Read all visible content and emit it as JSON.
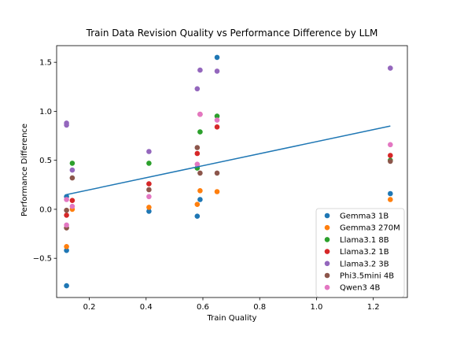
{
  "chart_data": {
    "type": "scatter",
    "title": "Train Data Revision Quality vs Performance Difference by LLM",
    "xlabel": "Train Quality",
    "ylabel": "Performance Difference",
    "xlim": [
      0.085,
      1.32
    ],
    "ylim": [
      -0.9,
      1.67
    ],
    "xticks": [
      0.2,
      0.4,
      0.6,
      0.8,
      1.0,
      1.2
    ],
    "xtick_labels": [
      "0.2",
      "0.4",
      "0.6",
      "0.8",
      "1.0",
      "1.2"
    ],
    "yticks": [
      -0.5,
      0.0,
      0.5,
      1.0,
      1.5
    ],
    "ytick_labels": [
      "−0.5",
      "0.0",
      "0.5",
      "1.0",
      "1.5"
    ],
    "grid": false,
    "legend_position": "lower-right",
    "series": [
      {
        "name": "Gemma3 1B",
        "color": "#1f77b4",
        "points": [
          [
            0.12,
            -0.42
          ],
          [
            0.12,
            -0.78
          ],
          [
            0.12,
            0.13
          ],
          [
            0.41,
            -0.02
          ],
          [
            0.58,
            -0.07
          ],
          [
            0.59,
            0.1
          ],
          [
            0.65,
            1.55
          ],
          [
            1.26,
            0.16
          ]
        ]
      },
      {
        "name": "Gemma3 270M",
        "color": "#ff7f0e",
        "points": [
          [
            0.12,
            -0.38
          ],
          [
            0.14,
            0.0
          ],
          [
            0.41,
            0.02
          ],
          [
            0.58,
            0.05
          ],
          [
            0.59,
            0.19
          ],
          [
            0.65,
            0.18
          ],
          [
            1.26,
            0.1
          ]
        ]
      },
      {
        "name": "Llama3.1 8B",
        "color": "#2ca02c",
        "points": [
          [
            0.14,
            0.47
          ],
          [
            0.41,
            0.47
          ],
          [
            0.58,
            0.42
          ],
          [
            0.59,
            0.79
          ],
          [
            0.65,
            0.95
          ],
          [
            1.26,
            0.5
          ]
        ]
      },
      {
        "name": "Llama3.2 1B",
        "color": "#d62728",
        "points": [
          [
            0.12,
            -0.06
          ],
          [
            0.14,
            0.09
          ],
          [
            0.41,
            0.26
          ],
          [
            0.58,
            0.57
          ],
          [
            0.59,
            0.97
          ],
          [
            0.65,
            0.84
          ],
          [
            1.26,
            0.55
          ]
        ]
      },
      {
        "name": "Llama3.2 3B",
        "color": "#9467bd",
        "points": [
          [
            0.12,
            0.86
          ],
          [
            0.12,
            0.88
          ],
          [
            0.14,
            0.4
          ],
          [
            0.41,
            0.59
          ],
          [
            0.58,
            1.23
          ],
          [
            0.59,
            1.42
          ],
          [
            0.65,
            1.41
          ],
          [
            1.26,
            1.44
          ]
        ]
      },
      {
        "name": "Phi3.5mini 4B",
        "color": "#8c564b",
        "points": [
          [
            0.12,
            -0.19
          ],
          [
            0.12,
            -0.01
          ],
          [
            0.14,
            0.32
          ],
          [
            0.41,
            0.2
          ],
          [
            0.58,
            0.63
          ],
          [
            0.59,
            0.37
          ],
          [
            0.65,
            0.37
          ],
          [
            1.26,
            0.49
          ]
        ]
      },
      {
        "name": "Qwen3 4B",
        "color": "#e377c2",
        "points": [
          [
            0.12,
            -0.16
          ],
          [
            0.12,
            0.1
          ],
          [
            0.14,
            0.03
          ],
          [
            0.41,
            0.13
          ],
          [
            0.58,
            0.46
          ],
          [
            0.59,
            0.97
          ],
          [
            0.65,
            0.91
          ],
          [
            1.26,
            0.66
          ]
        ]
      }
    ],
    "trendline": {
      "color": "#1f77b4",
      "x": [
        0.12,
        1.26
      ],
      "y": [
        0.15,
        0.85
      ]
    }
  }
}
